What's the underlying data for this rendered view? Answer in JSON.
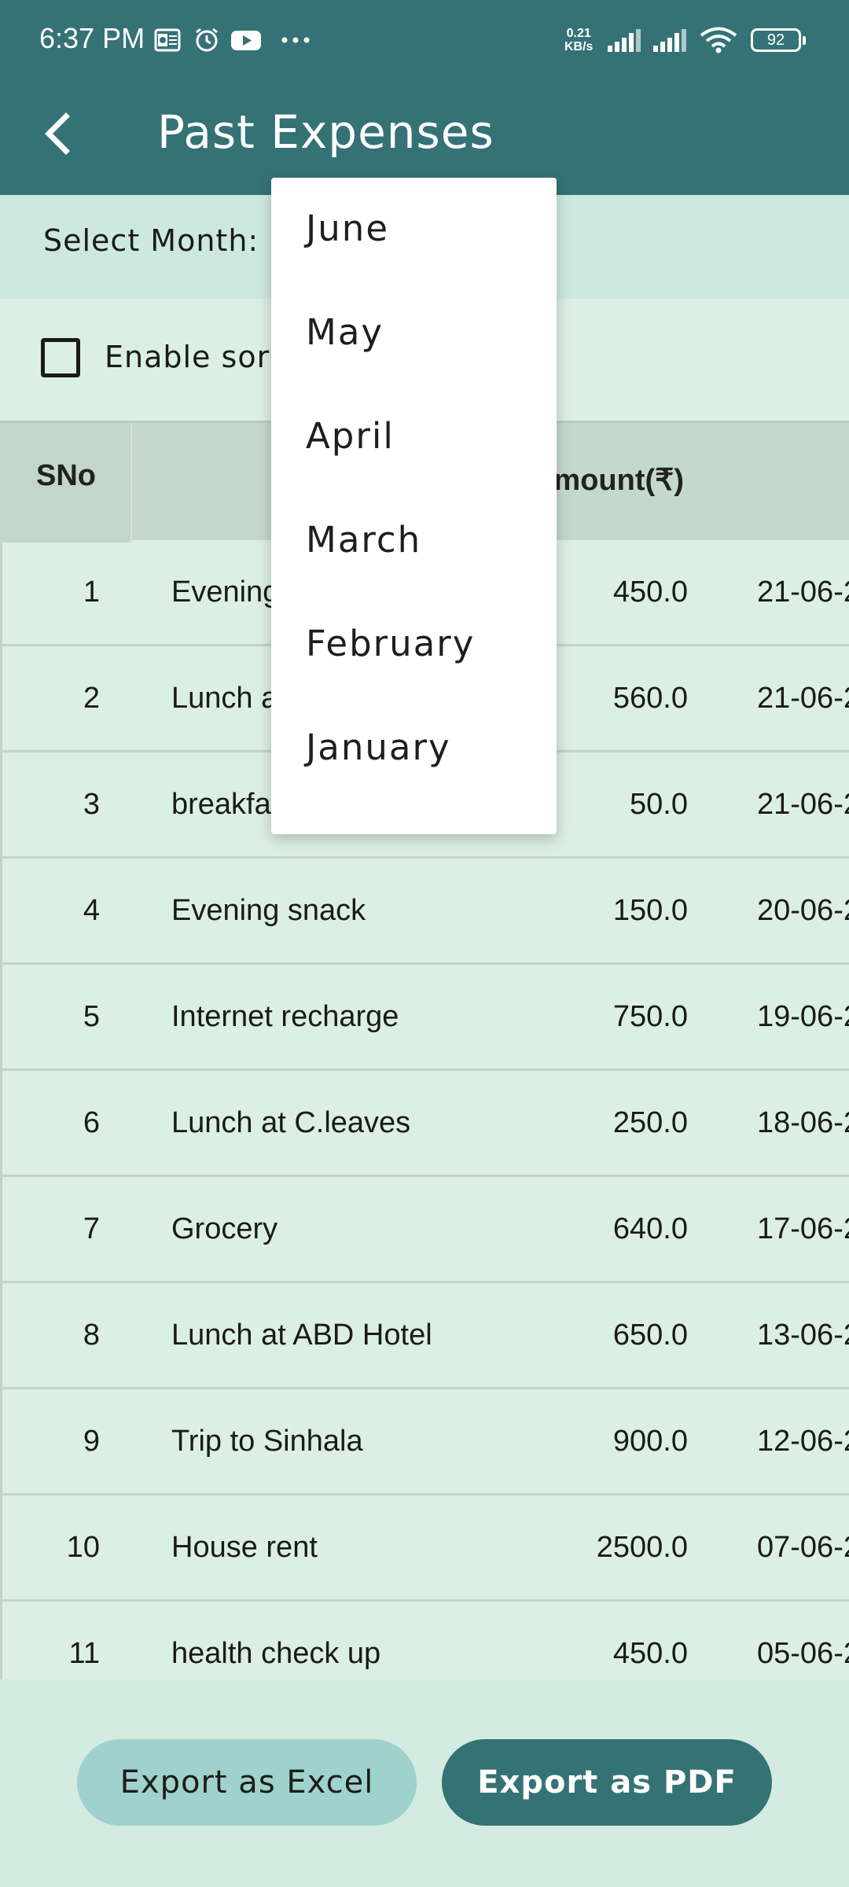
{
  "status_bar": {
    "time": "6:37 PM",
    "icons": [
      "outlook-icon",
      "alarm-icon",
      "youtube-icon",
      "more-icon"
    ],
    "net_speed_value": "0.21",
    "net_speed_unit": "KB/s",
    "battery": "92"
  },
  "app_bar": {
    "title": "Past Expenses",
    "back_icon": "back-arrow-icon"
  },
  "month_selector": {
    "label": "Select Month:",
    "options": [
      "June",
      "May",
      "April",
      "March",
      "February",
      "January"
    ]
  },
  "sort": {
    "label": "Enable sor",
    "checked": false
  },
  "table": {
    "headers": {
      "sno": "SNo",
      "amount": "Amount(₹)"
    },
    "rows": [
      {
        "sno": "1",
        "desc": "Evening",
        "amount": "450.0",
        "date": "21-06-2"
      },
      {
        "sno": "2",
        "desc": "Lunch a",
        "amount": "560.0",
        "date": "21-06-2"
      },
      {
        "sno": "3",
        "desc": "breakfa",
        "amount": "50.0",
        "date": "21-06-2"
      },
      {
        "sno": "4",
        "desc": "Evening snack",
        "amount": "150.0",
        "date": "20-06-2"
      },
      {
        "sno": "5",
        "desc": "Internet recharge",
        "amount": "750.0",
        "date": "19-06-2"
      },
      {
        "sno": "6",
        "desc": "Lunch at C.leaves",
        "amount": "250.0",
        "date": "18-06-2"
      },
      {
        "sno": "7",
        "desc": "Grocery",
        "amount": "640.0",
        "date": "17-06-2"
      },
      {
        "sno": "8",
        "desc": "Lunch at ABD Hotel",
        "amount": "650.0",
        "date": "13-06-2"
      },
      {
        "sno": "9",
        "desc": "Trip to Sinhala",
        "amount": "900.0",
        "date": "12-06-2"
      },
      {
        "sno": "10",
        "desc": "House rent",
        "amount": "2500.0",
        "date": "07-06-2"
      },
      {
        "sno": "11",
        "desc": "health check up",
        "amount": "450.0",
        "date": "05-06-2"
      }
    ]
  },
  "actions": {
    "export_excel": "Export as Excel",
    "export_pdf": "Export as PDF"
  },
  "colors": {
    "primary": "#357275",
    "background": "#dcefe4",
    "month_bar": "#cde9df",
    "table_header": "#c4d9cc",
    "excel_button": "#9fd2cc"
  }
}
